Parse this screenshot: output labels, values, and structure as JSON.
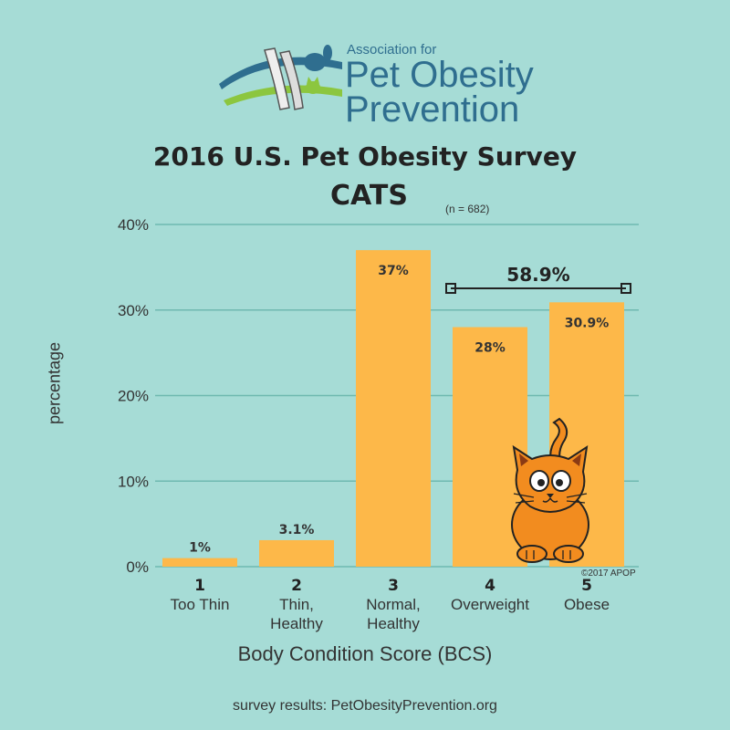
{
  "logo": {
    "line1": "Association for",
    "line2": "Pet Obesity",
    "line3": "Prevention"
  },
  "header": {
    "title": "2016 U.S. Pet Obesity Survey",
    "subtitle": "CATS",
    "sample_size": "(n = 682)"
  },
  "chart_data": {
    "type": "bar",
    "categories": [
      "1",
      "2",
      "3",
      "4",
      "5"
    ],
    "category_names": [
      [
        "Too Thin"
      ],
      [
        "Thin,",
        "Healthy"
      ],
      [
        "Normal,",
        "Healthy"
      ],
      [
        "Overweight"
      ],
      [
        "Obese"
      ]
    ],
    "values": [
      1,
      3.1,
      37,
      28,
      30.9
    ],
    "value_labels": [
      "1%",
      "3.1%",
      "37%",
      "28%",
      "30.9%"
    ],
    "ylim": [
      0,
      40
    ],
    "yticks": [
      0,
      10,
      20,
      30,
      40
    ],
    "ytick_labels": [
      "0%",
      "10%",
      "20%",
      "30%",
      "40%"
    ],
    "ylabel": "percentage",
    "xlabel": "Body Condition Score (BCS)",
    "grid": true,
    "bar_color": "#fdb849",
    "annotation": {
      "label": "58.9%",
      "spans_categories": [
        "4",
        "5"
      ]
    }
  },
  "copyright": "©2017 APOP",
  "footer": "survey results: PetObesityPrevention.org",
  "colors": {
    "background": "#a6dcd6",
    "bar": "#fdb849",
    "logo_text": "#2f6e8f",
    "grid": "#6fb9b0"
  }
}
